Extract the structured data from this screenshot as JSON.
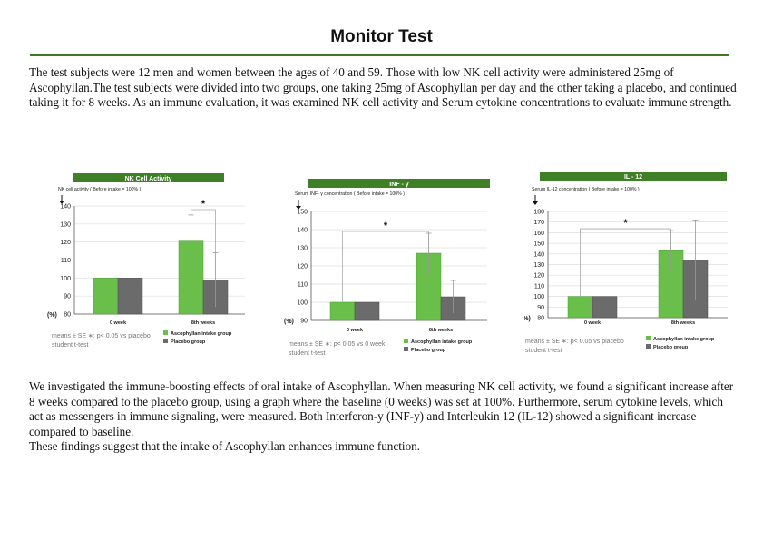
{
  "page": {
    "title": "Monitor Test",
    "intro": "The test subjects were 12 men and women between the ages of 40 and 59. Those with low NK cell activity were administered 25mg of Ascophyllan.The test subjects were divided into two groups, one taking 25mg of Ascophyllan per day and the other taking a placebo, and continued taking it for 8 weeks. As an immune evaluation, it was examined NK cell activity and Serum cytokine concentrations to evaluate immune strength.",
    "conclusion_lines": [
      "We investigated the immune-boosting effects of oral intake of Ascophyllan. When measuring NK cell activity, we found a significant increase after 8 weeks compared to the placebo group, using a graph where the baseline (0 weeks) was set at 100%. Furthermore, serum cytokine levels, which act as messengers in immune signaling, were measured. Both Interferon-y (INF-y) and Interleukin 12 (IL-12) showed a significant increase compared to baseline.",
      "These findings suggest that the intake of Ascophyllan enhances immune function."
    ]
  },
  "colors": {
    "accent": "#3d7a24",
    "ascophyllan": "#6abf4b",
    "placebo": "#6b6b6b",
    "header": "#3f7f25"
  },
  "chart_data": [
    {
      "type": "bar",
      "title": "NK Cell Activity",
      "ylabel": "NK cell activity ( Before intake = 100% )",
      "unit_label": "(%)",
      "ylim": [
        80,
        140
      ],
      "yticks": [
        80,
        90,
        100,
        110,
        120,
        130,
        140
      ],
      "categories": [
        "0 week",
        "8th weeks"
      ],
      "series": [
        {
          "name": "Ascophyllan intake group",
          "values": [
            100,
            121
          ],
          "se": [
            0,
            14
          ]
        },
        {
          "name": "Placebo group",
          "values": [
            100,
            99
          ],
          "se": [
            0,
            15
          ]
        }
      ],
      "significance": {
        "label": "*",
        "between": "8th weeks groups"
      },
      "footnote": {
        "line1": "means ± SE  ∗: p< 0.05 vs placebo",
        "line2": "student t-test"
      }
    },
    {
      "type": "bar",
      "title": "INF - γ",
      "ylabel": "Serum INF- γ  concentration ( Before intake = 100% )",
      "unit_label": "(%)",
      "ylim": [
        90,
        150
      ],
      "yticks": [
        90,
        100,
        110,
        120,
        130,
        140,
        150
      ],
      "categories": [
        "0 week",
        "8th weeks"
      ],
      "series": [
        {
          "name": "Ascophyllan intake group",
          "values": [
            100,
            127
          ],
          "se": [
            0,
            11
          ]
        },
        {
          "name": "Placebo group",
          "values": [
            100,
            103
          ],
          "se": [
            0,
            9
          ]
        }
      ],
      "significance": {
        "label": "*",
        "between": "0 week vs 8th weeks"
      },
      "footnote": {
        "line1": "means ± SE  ∗: p< 0.05 vs 0 week",
        "line2": "student t-test"
      }
    },
    {
      "type": "bar",
      "title": "IL - 12",
      "ylabel": "Serum IL-12 concentration ( Before intake = 100% )",
      "unit_label": "(%)",
      "ylim": [
        80,
        180
      ],
      "yticks": [
        80,
        90,
        100,
        110,
        120,
        130,
        140,
        150,
        160,
        170,
        180
      ],
      "categories": [
        "0 week",
        "8th weeks"
      ],
      "series": [
        {
          "name": "Ascophyllan intake group",
          "values": [
            100,
            143
          ],
          "se": [
            0,
            19
          ]
        },
        {
          "name": "Placebo group",
          "values": [
            100,
            134
          ],
          "se": [
            0,
            38
          ]
        }
      ],
      "significance": {
        "label": "*",
        "between": "0 week vs 8th weeks"
      },
      "footnote": {
        "line1": "means ± SE  ∗: p< 0.05 vs placebo",
        "line2": "student t-test"
      }
    }
  ]
}
